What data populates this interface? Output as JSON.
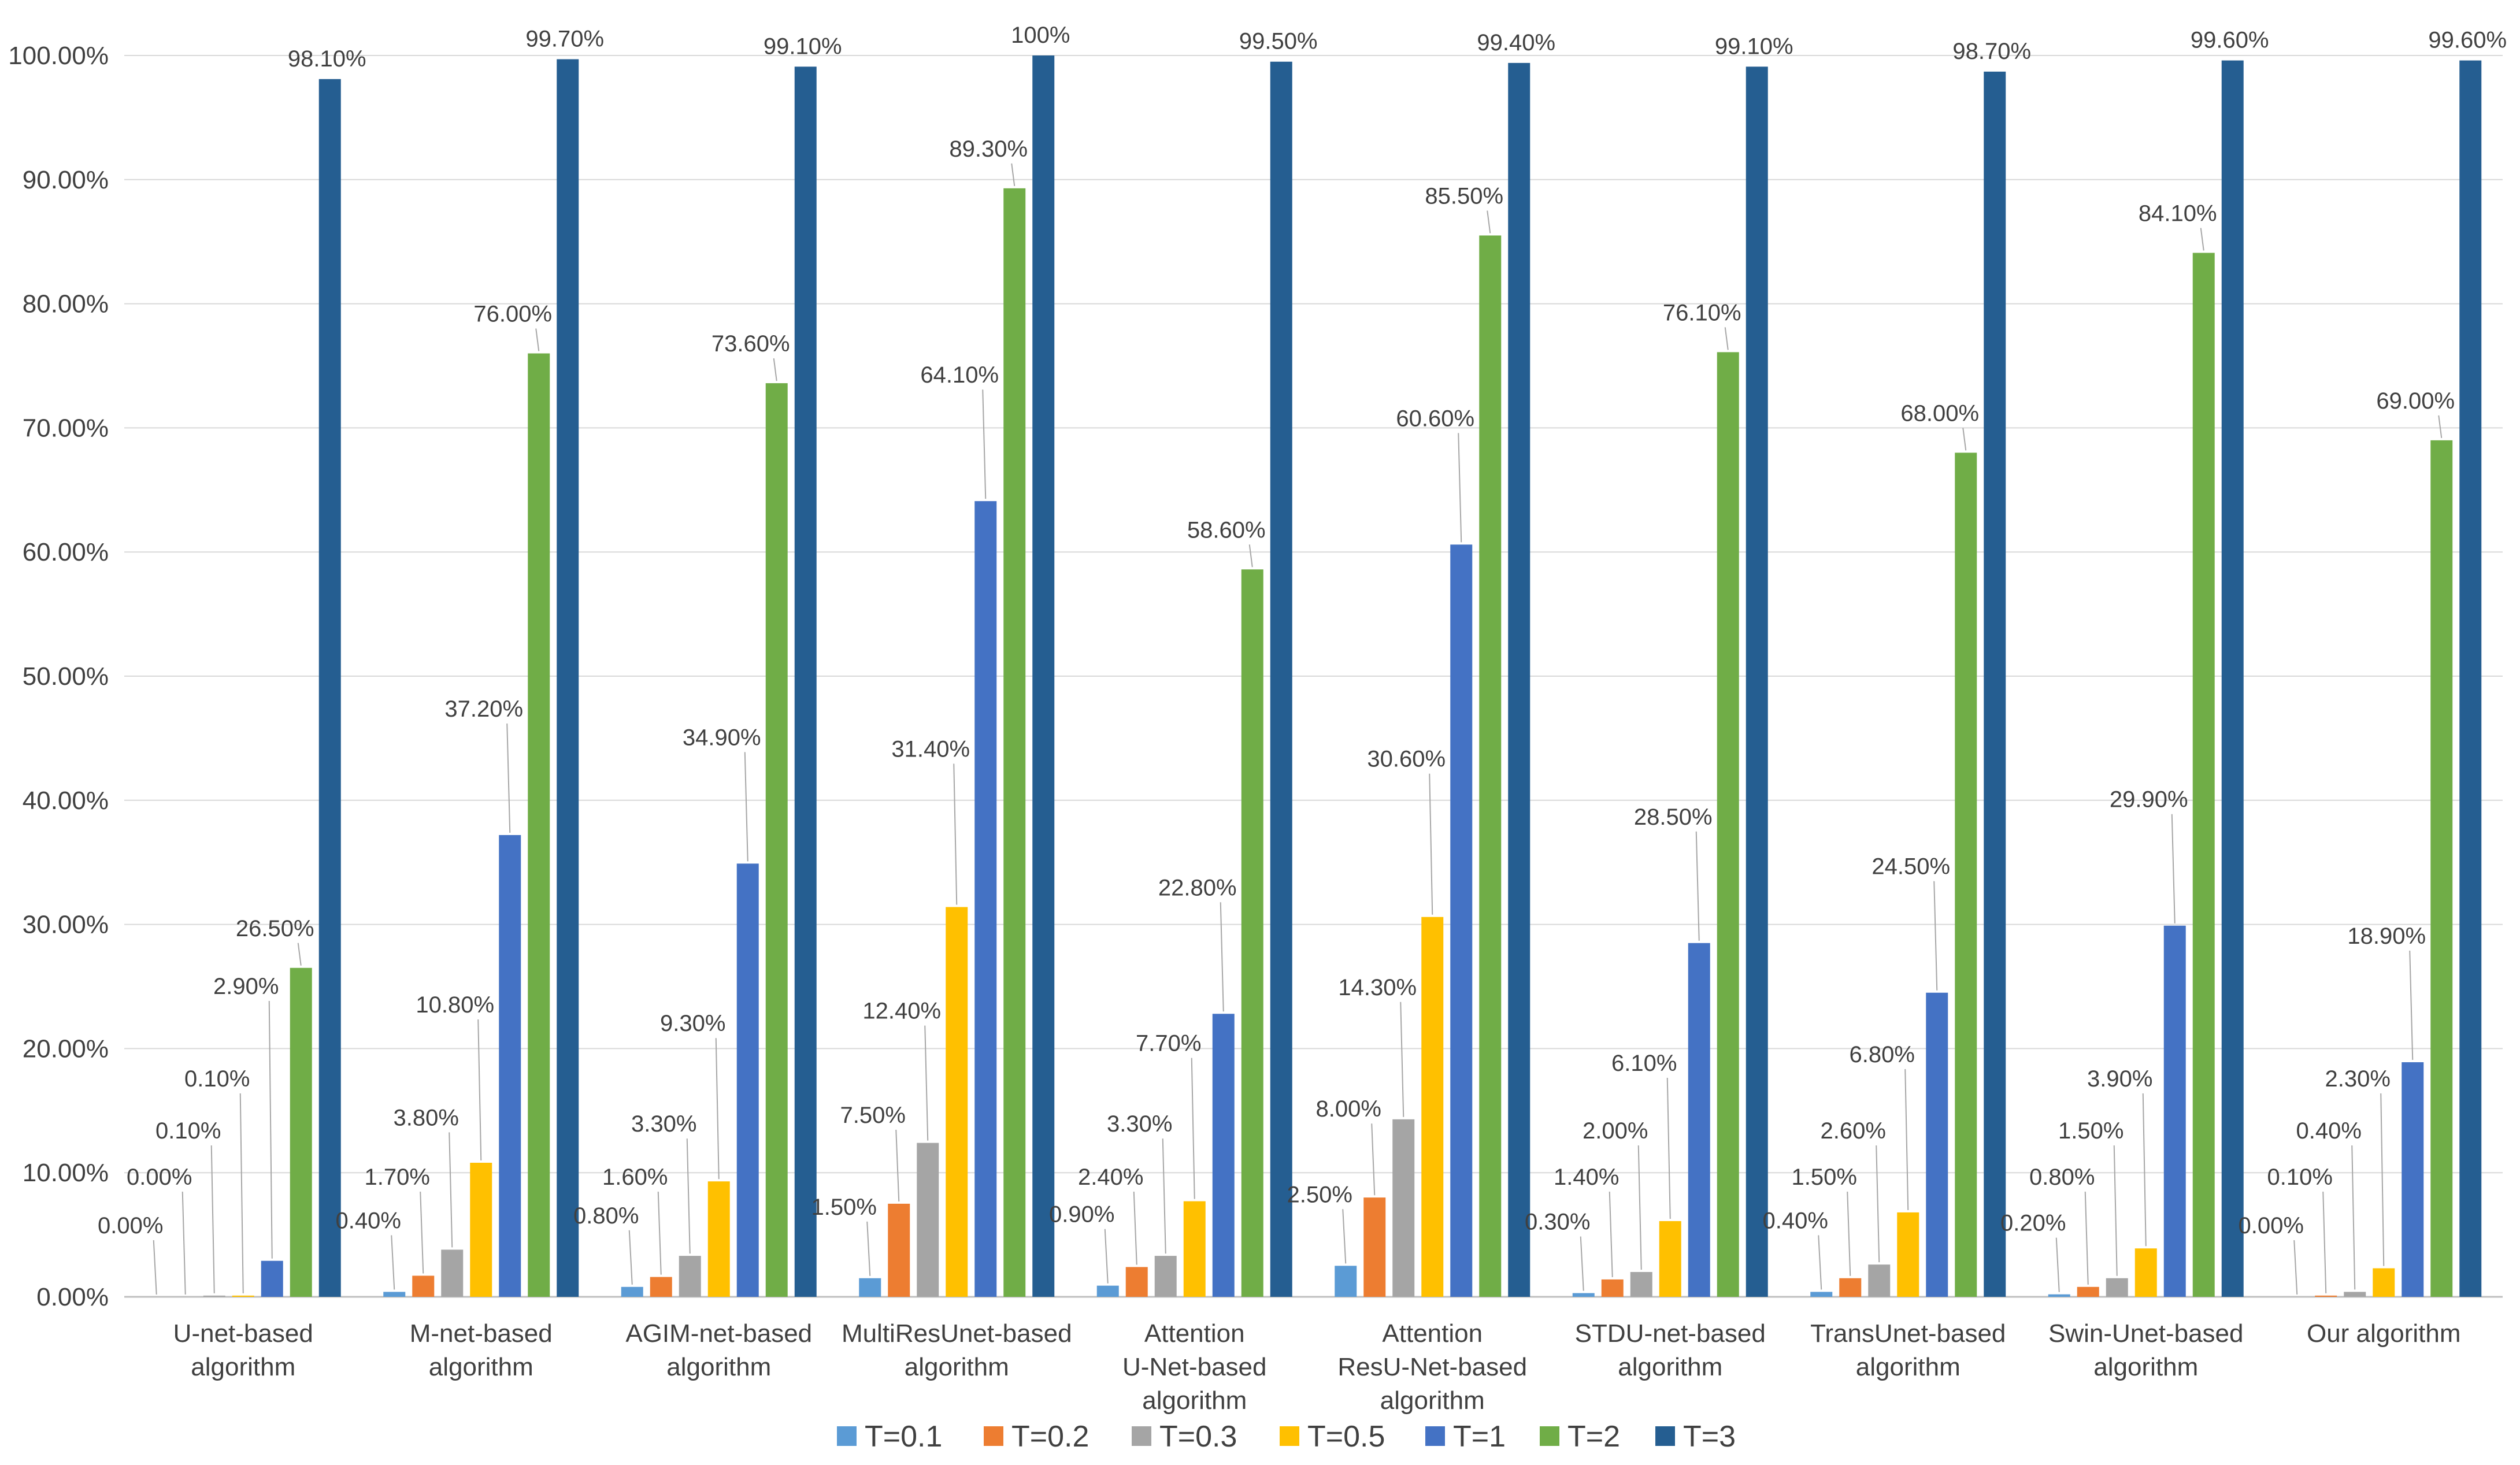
{
  "chart_data": {
    "type": "bar",
    "title": "",
    "xlabel": "",
    "ylabel": "",
    "ylim": [
      0,
      1
    ],
    "yticks": [
      "0.00%",
      "10.00%",
      "20.00%",
      "30.00%",
      "40.00%",
      "50.00%",
      "60.00%",
      "70.00%",
      "80.00%",
      "90.00%",
      "100.00%"
    ],
    "grid": true,
    "legend_position": "bottom",
    "categories": [
      [
        "U-net-based",
        "algorithm"
      ],
      [
        "M-net-based",
        "algorithm"
      ],
      [
        "AGIM-net-based",
        "algorithm"
      ],
      [
        "MultiResUnet-based",
        "algorithm"
      ],
      [
        "Attention",
        "U-Net-based",
        "algorithm"
      ],
      [
        "Attention",
        "ResU-Net-based",
        "algorithm"
      ],
      [
        "STDU-net-based",
        "algorithm"
      ],
      [
        "TransUnet-based",
        "algorithm"
      ],
      [
        "Swin-Unet-based",
        "algorithm"
      ],
      [
        "Our algorithm"
      ]
    ],
    "series": [
      {
        "name": "T=0.1",
        "color": "#5B9BD5",
        "values": [
          0.0,
          0.004,
          0.008,
          0.015,
          0.009,
          0.025,
          0.003,
          0.004,
          0.002,
          0.0
        ],
        "labels": [
          "0.00%",
          "0.40%",
          "0.80%",
          "1.50%",
          "0.90%",
          "2.50%",
          "0.30%",
          "0.40%",
          "0.20%",
          "0.00%"
        ]
      },
      {
        "name": "T=0.2",
        "color": "#ED7D31",
        "values": [
          0.0,
          0.017,
          0.016,
          0.075,
          0.024,
          0.08,
          0.014,
          0.015,
          0.008,
          0.001
        ],
        "labels": [
          "0.00%",
          "1.70%",
          "1.60%",
          "7.50%",
          "2.40%",
          "8.00%",
          "1.40%",
          "1.50%",
          "0.80%",
          "0.10%"
        ]
      },
      {
        "name": "T=0.3",
        "color": "#A5A5A5",
        "values": [
          0.001,
          0.038,
          0.033,
          0.124,
          0.033,
          0.143,
          0.02,
          0.026,
          0.015,
          0.004
        ],
        "labels": [
          "0.10%",
          "3.80%",
          "3.30%",
          "12.40%",
          "3.30%",
          "14.30%",
          "2.00%",
          "2.60%",
          "1.50%",
          "0.40%"
        ]
      },
      {
        "name": "T=0.5",
        "color": "#FFC000",
        "values": [
          0.001,
          0.108,
          0.093,
          0.314,
          0.077,
          0.306,
          0.061,
          0.068,
          0.039,
          0.023
        ],
        "labels": [
          "0.10%",
          "10.80%",
          "9.30%",
          "31.40%",
          "7.70%",
          "30.60%",
          "6.10%",
          "6.80%",
          "3.90%",
          "2.30%"
        ]
      },
      {
        "name": "T=1",
        "color": "#4472C4",
        "values": [
          0.029,
          0.372,
          0.349,
          0.641,
          0.228,
          0.606,
          0.285,
          0.245,
          0.299,
          0.189
        ],
        "labels": [
          "2.90%",
          "37.20%",
          "34.90%",
          "64.10%",
          "22.80%",
          "60.60%",
          "28.50%",
          "24.50%",
          "29.90%",
          "18.90%"
        ]
      },
      {
        "name": "T=2",
        "color": "#70AD47",
        "values": [
          0.265,
          0.76,
          0.736,
          0.893,
          0.586,
          0.855,
          0.761,
          0.68,
          0.841,
          0.69
        ],
        "labels": [
          "26.50%",
          "76.00%",
          "73.60%",
          "89.30%",
          "58.60%",
          "85.50%",
          "76.10%",
          "68.00%",
          "84.10%",
          "69.00%"
        ]
      },
      {
        "name": "T=3",
        "color": "#255E91",
        "values": [
          0.981,
          0.997,
          0.991,
          1.0,
          0.995,
          0.994,
          0.991,
          0.987,
          0.996,
          0.996
        ],
        "labels": [
          "98.10%",
          "99.70%",
          "99.10%",
          "100%",
          "99.50%",
          "99.40%",
          "99.10%",
          "98.70%",
          "99.60%",
          "99.60%"
        ]
      }
    ]
  }
}
